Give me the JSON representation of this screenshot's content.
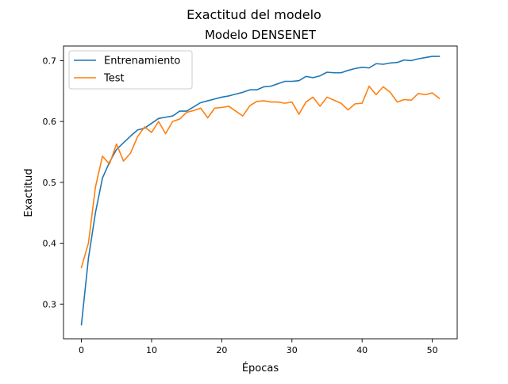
{
  "figure": {
    "suptitle": "Exactitud del modelo",
    "title": "Modelo DENSENET"
  },
  "chart_data": {
    "type": "line",
    "title": "Modelo DENSENET",
    "suptitle": "Exactitud del modelo",
    "xlabel": "Épocas",
    "ylabel": "Exactitud",
    "xlim": [
      -2.55,
      53.55
    ],
    "ylim": [
      0.243,
      0.724
    ],
    "xticks": [
      0,
      10,
      20,
      30,
      40,
      50
    ],
    "yticks": [
      0.3,
      0.4,
      0.5,
      0.6,
      0.7
    ],
    "xtick_labels": [
      "0",
      "10",
      "20",
      "30",
      "40",
      "50"
    ],
    "ytick_labels": [
      "0.3",
      "0.4",
      "0.5",
      "0.6",
      "0.7"
    ],
    "legend_position": "top-left",
    "grid": false,
    "x": [
      0,
      1,
      2,
      3,
      4,
      5,
      6,
      7,
      8,
      9,
      10,
      11,
      12,
      13,
      14,
      15,
      16,
      17,
      18,
      19,
      20,
      21,
      22,
      23,
      24,
      25,
      26,
      27,
      28,
      29,
      30,
      31,
      32,
      33,
      34,
      35,
      36,
      37,
      38,
      39,
      40,
      41,
      42,
      43,
      44,
      45,
      46,
      47,
      48,
      49,
      50,
      51
    ],
    "series": [
      {
        "name": "Entrenamiento",
        "color": "#1f77b4",
        "values": [
          0.266,
          0.375,
          0.45,
          0.507,
          0.533,
          0.554,
          0.565,
          0.576,
          0.586,
          0.589,
          0.597,
          0.605,
          0.607,
          0.609,
          0.617,
          0.617,
          0.624,
          0.631,
          0.634,
          0.637,
          0.64,
          0.642,
          0.645,
          0.648,
          0.652,
          0.652,
          0.657,
          0.658,
          0.662,
          0.666,
          0.666,
          0.667,
          0.674,
          0.672,
          0.675,
          0.681,
          0.68,
          0.68,
          0.684,
          0.687,
          0.689,
          0.688,
          0.695,
          0.694,
          0.696,
          0.697,
          0.701,
          0.7,
          0.703,
          0.705,
          0.707,
          0.707
        ]
      },
      {
        "name": "Test",
        "color": "#ff7f0e",
        "values": [
          0.36,
          0.4,
          0.492,
          0.543,
          0.53,
          0.563,
          0.535,
          0.548,
          0.575,
          0.591,
          0.582,
          0.6,
          0.58,
          0.6,
          0.604,
          0.615,
          0.618,
          0.622,
          0.606,
          0.622,
          0.623,
          0.625,
          0.617,
          0.609,
          0.626,
          0.633,
          0.634,
          0.632,
          0.632,
          0.63,
          0.632,
          0.612,
          0.632,
          0.64,
          0.625,
          0.64,
          0.635,
          0.63,
          0.619,
          0.629,
          0.63,
          0.658,
          0.644,
          0.657,
          0.648,
          0.632,
          0.636,
          0.635,
          0.646,
          0.644,
          0.647,
          0.638
        ]
      }
    ]
  }
}
